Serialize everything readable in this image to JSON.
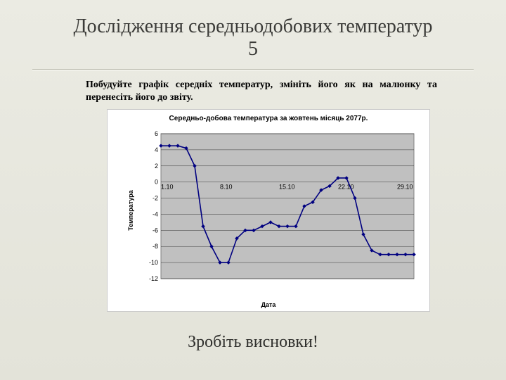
{
  "title_line1": "Дослідження середньодобових температур",
  "title_line2": "5",
  "task_text": "Побудуйте графік середніх температур, змініть його як на малюнку та перенесіть його до звіту.",
  "footer_text": "Зробіть висновки!",
  "chart": {
    "type": "line",
    "title": "Середньо-добова температура за жовтень місяць 2077р.",
    "ylabel": "Температура",
    "xlabel": "Дата",
    "ylim": [
      -12,
      6
    ],
    "ytick_step": 2,
    "x_index_range": [
      1,
      31
    ],
    "x_tick_indices": [
      1,
      8,
      15,
      22,
      29
    ],
    "x_tick_labels": [
      "1.10",
      "8.10",
      "15.10",
      "22.10",
      "29.10"
    ],
    "values": [
      4.5,
      4.5,
      4.5,
      4.2,
      2.0,
      -5.5,
      -8.0,
      -10,
      -10,
      -7.0,
      -6.0,
      -6.0,
      -5.5,
      -5.0,
      -5.5,
      -5.5,
      -5.5,
      -3.0,
      -2.5,
      -1.0,
      -0.5,
      0.5,
      0.5,
      -2.0,
      -6.5,
      -8.5,
      -9.0,
      -9.0,
      -9.0,
      -9.0,
      -9.0
    ],
    "colors": {
      "plot_bg": "#c0c0c0",
      "page_bg": "#ffffff",
      "grid": "#000000",
      "border": "#808080",
      "line": "#000080",
      "marker_fill": "#000080",
      "marker_edge": "#000080",
      "tick_text": "#000000"
    },
    "style": {
      "line_width": 1.6,
      "marker": "diamond",
      "marker_size": 5,
      "title_fontsize": 10,
      "label_fontsize": 9,
      "tick_fontsize": 9,
      "grid_on": true
    }
  }
}
